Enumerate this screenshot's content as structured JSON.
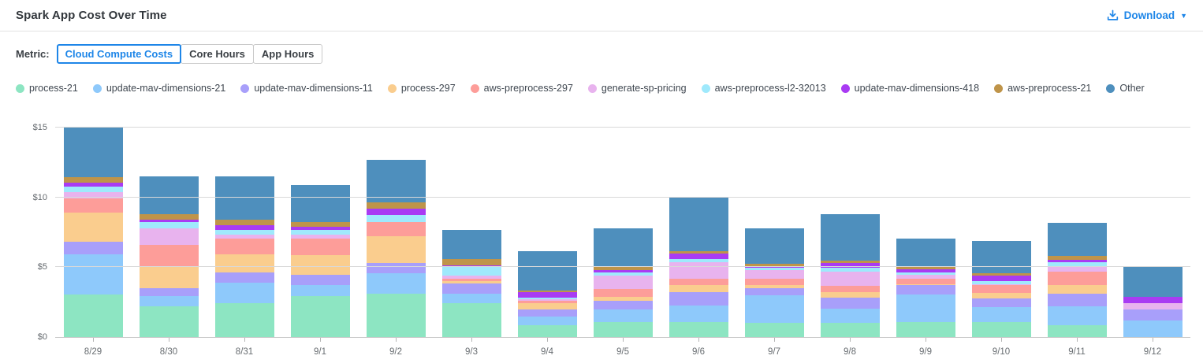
{
  "colors": {
    "accent_blue": "#1e86e8",
    "grid": "#d9d9d9",
    "axis_text": "#64696e"
  },
  "header": {
    "title": "Spark App Cost Over Time",
    "download_label": "Download"
  },
  "metric": {
    "label": "Metric:",
    "options": [
      {
        "label": "Cloud Compute Costs",
        "selected": true
      },
      {
        "label": "Core Hours",
        "selected": false
      },
      {
        "label": "App Hours",
        "selected": false
      }
    ]
  },
  "chart_data": {
    "type": "bar",
    "stacked": true,
    "title": "Spark App Cost Over Time",
    "xlabel": "",
    "ylabel": "Cloud Compute Costs ($)",
    "ylim": [
      0,
      15.75
    ],
    "grid": true,
    "legend_position": "top",
    "y_ticks": [
      {
        "value": 0,
        "label": "$0"
      },
      {
        "value": 5,
        "label": "$5"
      },
      {
        "value": 10,
        "label": "$10"
      },
      {
        "value": 15,
        "label": "$15"
      }
    ],
    "categories": [
      "8/29",
      "8/30",
      "8/31",
      "9/1",
      "9/2",
      "9/3",
      "9/4",
      "9/5",
      "9/6",
      "9/7",
      "9/8",
      "9/9",
      "9/10",
      "9/11",
      "9/12"
    ],
    "series": [
      {
        "name": "process-21",
        "color": "#8DE5C2",
        "values": [
          3.05,
          2.2,
          2.4,
          2.95,
          3.1,
          2.4,
          0.85,
          1.1,
          1.05,
          1.0,
          1.0,
          1.05,
          1.05,
          0.85,
          0.0
        ]
      },
      {
        "name": "update-mav-dimensions-21",
        "color": "#8EC9FB",
        "values": [
          2.85,
          0.75,
          1.5,
          0.75,
          1.45,
          0.7,
          0.6,
          0.9,
          1.2,
          2.0,
          1.05,
          2.0,
          1.1,
          1.35,
          1.2
        ]
      },
      {
        "name": "update-mav-dimensions-11",
        "color": "#A89FFA",
        "values": [
          0.95,
          0.55,
          0.7,
          0.75,
          0.75,
          0.75,
          0.55,
          0.6,
          0.95,
          0.5,
          0.8,
          0.65,
          0.6,
          0.9,
          0.8
        ]
      },
      {
        "name": "process-297",
        "color": "#FACD8E",
        "values": [
          2.05,
          1.6,
          1.3,
          1.4,
          1.9,
          0.15,
          0.4,
          0.3,
          0.5,
          0.25,
          0.35,
          0.1,
          0.4,
          0.6,
          0.0
        ]
      },
      {
        "name": "aws-preprocess-297",
        "color": "#FD9D99",
        "values": [
          1.0,
          1.5,
          1.15,
          1.2,
          1.05,
          0.2,
          0.2,
          0.55,
          0.45,
          0.45,
          0.45,
          0.4,
          0.55,
          1.0,
          0.0
        ]
      },
      {
        "name": "generate-sp-pricing",
        "color": "#E8B3EE",
        "values": [
          0.5,
          1.2,
          0.3,
          0.3,
          0.0,
          0.2,
          0.1,
          0.95,
          1.2,
          0.6,
          1.05,
          0.25,
          0.1,
          0.4,
          0.45
        ]
      },
      {
        "name": "aws-preprocess-l2-32013",
        "color": "#9FE9FC",
        "values": [
          0.4,
          0.45,
          0.3,
          0.3,
          0.5,
          0.6,
          0.15,
          0.2,
          0.25,
          0.15,
          0.25,
          0.2,
          0.2,
          0.25,
          0.0
        ]
      },
      {
        "name": "update-mav-dimensions-418",
        "color": "#A93BF3",
        "values": [
          0.25,
          0.15,
          0.35,
          0.25,
          0.45,
          0.15,
          0.35,
          0.2,
          0.4,
          0.1,
          0.35,
          0.2,
          0.4,
          0.2,
          0.45
        ]
      },
      {
        "name": "aws-preprocess-21",
        "color": "#BF9449",
        "values": [
          0.4,
          0.4,
          0.4,
          0.35,
          0.45,
          0.45,
          0.15,
          0.2,
          0.15,
          0.2,
          0.2,
          0.2,
          0.15,
          0.25,
          0.0
        ]
      },
      {
        "name": "Other",
        "color": "#4E8FBD",
        "values": [
          3.55,
          2.7,
          3.1,
          2.65,
          3.05,
          2.1,
          2.8,
          2.8,
          3.85,
          2.55,
          3.3,
          2.0,
          2.35,
          2.4,
          2.2
        ]
      }
    ]
  }
}
